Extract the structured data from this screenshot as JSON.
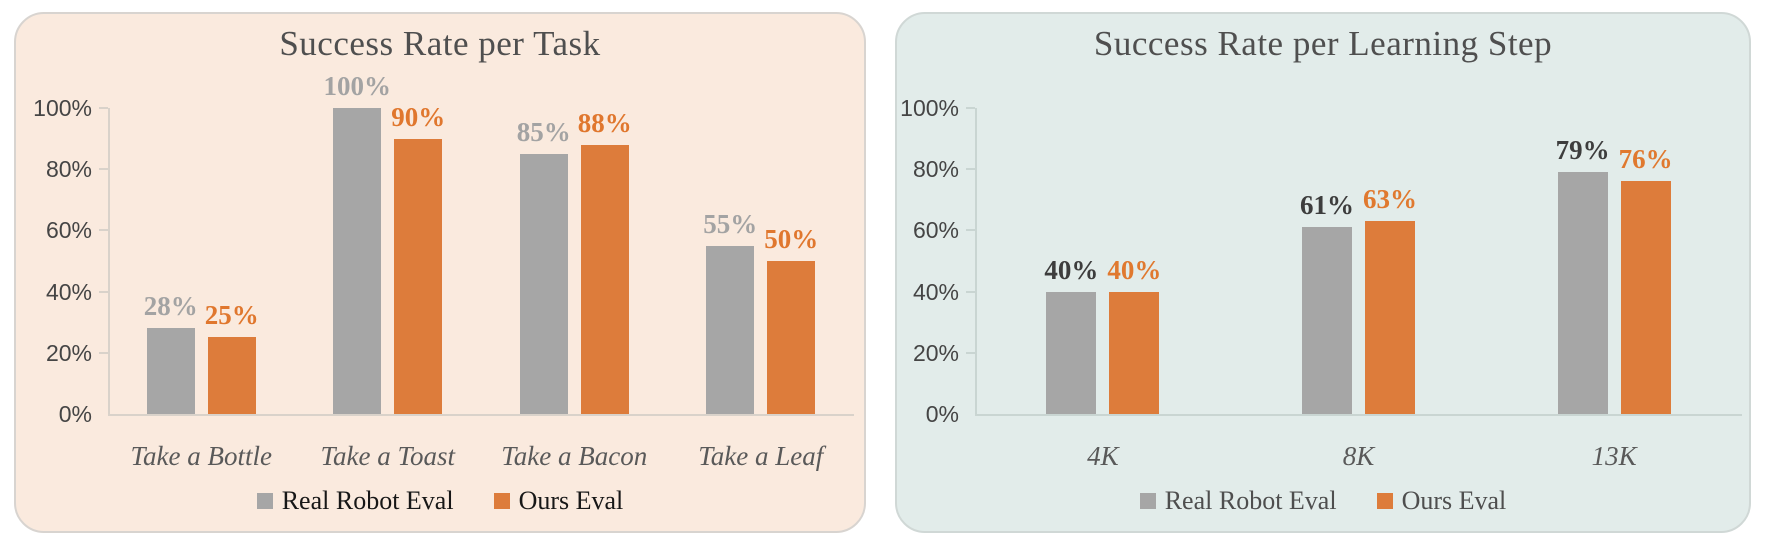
{
  "page_bg": "#ffffff",
  "chart_data": [
    {
      "id": "success-rate-per-task",
      "type": "bar",
      "title": "Success Rate per Task",
      "categories": [
        "Take a Bottle",
        "Take a Toast",
        "Take a Bacon",
        "Take a Leaf"
      ],
      "series": [
        {
          "name": "Real Robot Eval",
          "color": "#a6a6a6",
          "label_color": "#a3a3a3",
          "values": [
            28,
            100,
            85,
            55
          ],
          "labels": [
            "28%",
            "100%",
            "85%",
            "55%"
          ]
        },
        {
          "name": "Ours Eval",
          "color": "#dd7c3b",
          "label_color": "#e0772e",
          "values": [
            25,
            90,
            88,
            50
          ],
          "labels": [
            "25%",
            "90%",
            "88%",
            "50%"
          ]
        }
      ],
      "ylabel": "",
      "xlabel": "",
      "ylim": [
        0,
        100
      ],
      "y_ticks": [
        100,
        80,
        60,
        40,
        20,
        0
      ],
      "y_tick_labels": [
        "100%",
        "80%",
        "60%",
        "40%",
        "20%",
        "0%"
      ],
      "grid": false,
      "legend_position": "bottom",
      "panel_bg": "#faeade",
      "panel_border": "#d8d4d0",
      "axis_color": "#d9d2ca",
      "legend_text_color": "#171717"
    },
    {
      "id": "success-rate-per-learning-step",
      "type": "bar",
      "title": "Success Rate per Learning Step",
      "categories": [
        "4K",
        "8K",
        "13K"
      ],
      "series": [
        {
          "name": "Real Robot Eval",
          "color": "#a6a6a6",
          "label_color": "#3d3d3d",
          "values": [
            40,
            61,
            79
          ],
          "labels": [
            "40%",
            "61%",
            "79%"
          ]
        },
        {
          "name": "Ours Eval",
          "color": "#dd7c3b",
          "label_color": "#e0792f",
          "values": [
            40,
            63,
            76
          ],
          "labels": [
            "40%",
            "63%",
            "76%"
          ]
        }
      ],
      "ylabel": "",
      "xlabel": "",
      "ylim": [
        0,
        100
      ],
      "y_ticks": [
        100,
        80,
        60,
        40,
        20,
        0
      ],
      "y_tick_labels": [
        "100%",
        "80%",
        "60%",
        "40%",
        "20%",
        "0%"
      ],
      "grid": false,
      "legend_position": "bottom",
      "panel_bg": "#e2ecea",
      "panel_border": "#d0d8d6",
      "axis_color": "#c9d5d2",
      "legend_text_color": "#4e4e4e"
    }
  ]
}
